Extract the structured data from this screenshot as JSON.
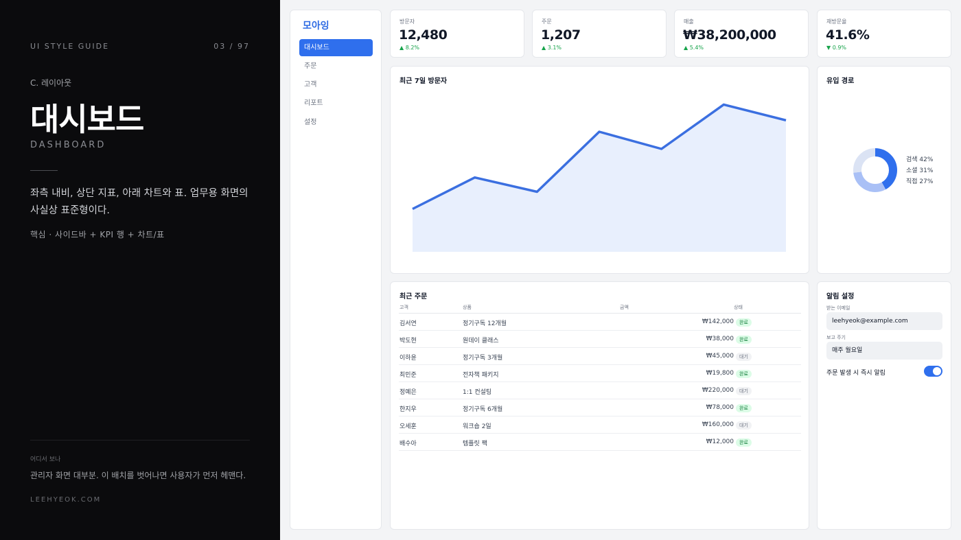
{
  "guide": {
    "header": "UI STYLE GUIDE",
    "page": "03 / 97",
    "section": "C. 레이아웃",
    "title": "대시보드",
    "subtitle": "DASHBOARD",
    "description": "좌측 내비, 상단 지표, 아래 차트와 표. 업무용 화면의 사실상 표준형이다.",
    "key": "핵심 · 사이드바 + KPI 행 + 차트/표",
    "where_label": "어디서 보나",
    "where_text": "관리자 화면 대부분. 이 배치를 벗어나면 사용자가 먼저 헤맨다.",
    "site": "LEEHYEOK.COM"
  },
  "app": {
    "brand": "모아잉",
    "nav": [
      "대시보드",
      "주문",
      "고객",
      "리포트",
      "설정"
    ],
    "active_nav": 0
  },
  "kpis": [
    {
      "label": "방문자",
      "value": "12,480",
      "delta": "8.2%",
      "direction": "up"
    },
    {
      "label": "주문",
      "value": "1,207",
      "delta": "3.1%",
      "direction": "up"
    },
    {
      "label": "매출",
      "value": "₩38,200,000",
      "delta": "5.4%",
      "direction": "up"
    },
    {
      "label": "재방문율",
      "value": "41.6%",
      "delta": "0.9%",
      "direction": "down"
    }
  ],
  "visitors_chart": {
    "title": "최근 7일 방문자"
  },
  "chart_data": [
    {
      "type": "area",
      "title": "최근 7일 방문자",
      "x": [
        1,
        2,
        3,
        4,
        5,
        6,
        7
      ],
      "values": [
        30,
        52,
        42,
        84,
        72,
        103,
        92
      ],
      "ylim": [
        0,
        120
      ],
      "grid": false,
      "color": "#3b6fe0",
      "fill": "#e8effd"
    },
    {
      "type": "pie",
      "title": "유입 경로",
      "categories": [
        "검색",
        "소셜",
        "직접"
      ],
      "values": [
        42,
        31,
        27
      ],
      "colors": [
        "#2f6fed",
        "#a9c0f6",
        "#dbe3f4"
      ],
      "legend": "right"
    }
  ],
  "traffic": {
    "title": "유입 경로",
    "legend": [
      "검색 42%",
      "소셜 31%",
      "직접 27%"
    ]
  },
  "orders": {
    "title": "최근 주문",
    "columns": [
      "고객",
      "상품",
      "금액",
      "상태"
    ],
    "rows": [
      {
        "customer": "김서연",
        "product": "정기구독 12개월",
        "amount": "₩142,000",
        "status": "완료"
      },
      {
        "customer": "박도현",
        "product": "원데이 클래스",
        "amount": "₩38,000",
        "status": "완료"
      },
      {
        "customer": "이하윤",
        "product": "정기구독 3개월",
        "amount": "₩45,000",
        "status": "대기"
      },
      {
        "customer": "최민준",
        "product": "전자책 패키지",
        "amount": "₩19,800",
        "status": "완료"
      },
      {
        "customer": "정예은",
        "product": "1:1 컨설팅",
        "amount": "₩220,000",
        "status": "대기"
      },
      {
        "customer": "한지우",
        "product": "정기구독 6개월",
        "amount": "₩78,000",
        "status": "완료"
      },
      {
        "customer": "오세훈",
        "product": "워크숍 2일",
        "amount": "₩160,000",
        "status": "대기"
      },
      {
        "customer": "배수아",
        "product": "템플릿 팩",
        "amount": "₩12,000",
        "status": "완료"
      }
    ]
  },
  "settings": {
    "title": "알림 설정",
    "email_label": "받는 이메일",
    "email_value": "leehyeok@example.com",
    "cycle_label": "보고 주기",
    "cycle_value": "매주 월요일",
    "toggle_label": "주문 발생 시 즉시 알림",
    "toggle_on": true
  }
}
